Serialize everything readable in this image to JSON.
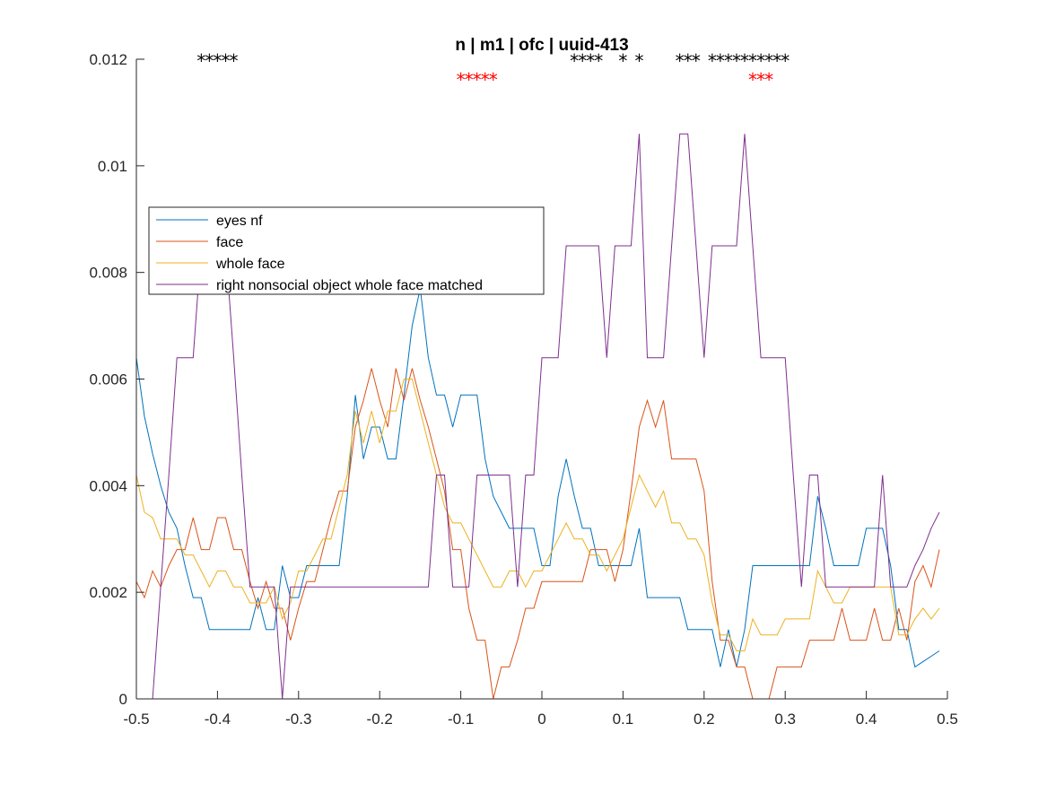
{
  "chart_data": {
    "type": "line",
    "title": "n | m1 | ofc | uuid-413",
    "xlabel": "",
    "ylabel": "",
    "xlim": [
      -0.5,
      0.5
    ],
    "ylim": [
      0,
      0.012
    ],
    "xticks": [
      -0.5,
      -0.4,
      -0.3,
      -0.2,
      -0.1,
      0,
      0.1,
      0.2,
      0.3,
      0.4,
      0.5
    ],
    "xtick_labels": [
      "-0.5",
      "-0.4",
      "-0.3",
      "-0.2",
      "-0.1",
      "0",
      "0.1",
      "0.2",
      "0.3",
      "0.4",
      "0.5"
    ],
    "yticks": [
      0,
      0.002,
      0.004,
      0.006,
      0.008,
      0.01,
      0.012
    ],
    "ytick_labels": [
      "0",
      "0.002",
      "0.004",
      "0.006",
      "0.008",
      "0.01",
      "0.012"
    ],
    "grid": false,
    "legend_position": "upper-left",
    "x": [
      -0.5,
      -0.49,
      -0.48,
      -0.47,
      -0.46,
      -0.45,
      -0.44,
      -0.43,
      -0.42,
      -0.41,
      -0.4,
      -0.39,
      -0.38,
      -0.37,
      -0.36,
      -0.35,
      -0.34,
      -0.33,
      -0.32,
      -0.31,
      -0.3,
      -0.29,
      -0.28,
      -0.27,
      -0.26,
      -0.25,
      -0.24,
      -0.23,
      -0.22,
      -0.21,
      -0.2,
      -0.19,
      -0.18,
      -0.17,
      -0.16,
      -0.15,
      -0.14,
      -0.13,
      -0.12,
      -0.11,
      -0.1,
      -0.09,
      -0.08,
      -0.07,
      -0.06,
      -0.05,
      -0.04,
      -0.03,
      -0.02,
      -0.01,
      0,
      0.01,
      0.02,
      0.03,
      0.04,
      0.05,
      0.06,
      0.07,
      0.08,
      0.09,
      0.1,
      0.11,
      0.12,
      0.13,
      0.14,
      0.15,
      0.16,
      0.17,
      0.18,
      0.19,
      0.2,
      0.21,
      0.22,
      0.23,
      0.24,
      0.25,
      0.26,
      0.27,
      0.28,
      0.29,
      0.3,
      0.31,
      0.32,
      0.33,
      0.34,
      0.35,
      0.36,
      0.37,
      0.38,
      0.39,
      0.4,
      0.41,
      0.42,
      0.43,
      0.44,
      0.45,
      0.46,
      0.47,
      0.48,
      0.49
    ],
    "series": [
      {
        "name": "eyes nf",
        "color": "#0072BD",
        "values": [
          0.0064,
          0.0053,
          0.0046,
          0.004,
          0.0035,
          0.0032,
          0.0025,
          0.0019,
          0.0019,
          0.0013,
          0.0013,
          0.0013,
          0.0013,
          0.0013,
          0.0013,
          0.0019,
          0.0013,
          0.0013,
          0.0025,
          0.0019,
          0.0019,
          0.0025,
          0.0025,
          0.0025,
          0.0025,
          0.0025,
          0.0038,
          0.0057,
          0.0045,
          0.0051,
          0.0051,
          0.0045,
          0.0045,
          0.0057,
          0.007,
          0.0077,
          0.0064,
          0.0057,
          0.0057,
          0.0051,
          0.0057,
          0.0057,
          0.0057,
          0.0045,
          0.0038,
          0.0035,
          0.0032,
          0.0032,
          0.0032,
          0.0032,
          0.0025,
          0.0025,
          0.0038,
          0.0045,
          0.0038,
          0.0032,
          0.0032,
          0.0025,
          0.0025,
          0.0025,
          0.0025,
          0.0025,
          0.0032,
          0.0019,
          0.0019,
          0.0019,
          0.0019,
          0.0019,
          0.0013,
          0.0013,
          0.0013,
          0.0013,
          0.0006,
          0.0013,
          0.0006,
          0.0013,
          0.0025,
          0.0025,
          0.0025,
          0.0025,
          0.0025,
          0.0025,
          0.0025,
          0.0025,
          0.0038,
          0.0032,
          0.0025,
          0.0025,
          0.0025,
          0.0025,
          0.0032,
          0.0032,
          0.0032,
          0.0025,
          0.0013,
          0.0013,
          0.0006,
          0.0007,
          0.0008,
          0.0009
        ]
      },
      {
        "name": "face",
        "color": "#D95319",
        "values": [
          0.0022,
          0.0019,
          0.0024,
          0.0021,
          0.0025,
          0.0028,
          0.0028,
          0.0034,
          0.0028,
          0.0028,
          0.0034,
          0.0034,
          0.0028,
          0.0028,
          0.0022,
          0.0017,
          0.0022,
          0.0017,
          0.0017,
          0.0011,
          0.0017,
          0.0022,
          0.0022,
          0.0028,
          0.0034,
          0.0039,
          0.0039,
          0.0051,
          0.0056,
          0.0062,
          0.0056,
          0.0051,
          0.0062,
          0.0056,
          0.0062,
          0.0056,
          0.0051,
          0.0045,
          0.0039,
          0.0028,
          0.0028,
          0.0017,
          0.0011,
          0.0011,
          0.0,
          0.0006,
          0.0006,
          0.0011,
          0.0017,
          0.0017,
          0.0022,
          0.0022,
          0.0022,
          0.0022,
          0.0022,
          0.0022,
          0.0028,
          0.0028,
          0.0028,
          0.0022,
          0.0028,
          0.0039,
          0.0051,
          0.0056,
          0.0051,
          0.0056,
          0.0045,
          0.0045,
          0.0045,
          0.0045,
          0.0039,
          0.0022,
          0.0011,
          0.0011,
          0.0006,
          0.0006,
          0.0,
          0.0,
          0.0,
          0.0006,
          0.0006,
          0.0006,
          0.0006,
          0.0011,
          0.0011,
          0.0011,
          0.0011,
          0.0017,
          0.0011,
          0.0011,
          0.0011,
          0.0017,
          0.0011,
          0.0011,
          0.0017,
          0.0011,
          0.0022,
          0.0025,
          0.0021,
          0.0028
        ]
      },
      {
        "name": "whole face",
        "color": "#EDB120",
        "values": [
          0.0042,
          0.0035,
          0.0034,
          0.003,
          0.003,
          0.003,
          0.0027,
          0.0027,
          0.0024,
          0.0021,
          0.0024,
          0.0024,
          0.0021,
          0.0021,
          0.0018,
          0.0018,
          0.0018,
          0.0021,
          0.0015,
          0.0018,
          0.0024,
          0.0024,
          0.0027,
          0.003,
          0.003,
          0.0036,
          0.0042,
          0.0054,
          0.0048,
          0.0054,
          0.0048,
          0.0054,
          0.0054,
          0.006,
          0.006,
          0.0054,
          0.0048,
          0.0042,
          0.0036,
          0.0033,
          0.0033,
          0.003,
          0.0027,
          0.0024,
          0.0021,
          0.0021,
          0.0024,
          0.0024,
          0.0021,
          0.0024,
          0.0024,
          0.0027,
          0.003,
          0.0033,
          0.003,
          0.003,
          0.0027,
          0.0027,
          0.0024,
          0.0027,
          0.003,
          0.0036,
          0.0042,
          0.0039,
          0.0036,
          0.0039,
          0.0033,
          0.0033,
          0.003,
          0.003,
          0.0027,
          0.0018,
          0.0012,
          0.0012,
          0.0009,
          0.0009,
          0.0015,
          0.0012,
          0.0012,
          0.0012,
          0.0015,
          0.0015,
          0.0015,
          0.0015,
          0.0024,
          0.0021,
          0.0018,
          0.0018,
          0.0021,
          0.0021,
          0.0021,
          0.0021,
          0.0021,
          0.0021,
          0.0012,
          0.0012,
          0.0015,
          0.0017,
          0.0015,
          0.0017
        ]
      },
      {
        "name": "right nonsocial object whole face matched",
        "color": "#7E2F8E",
        "values": [
          0.0,
          0.0,
          0.0,
          0.0021,
          0.0042,
          0.0064,
          0.0064,
          0.0064,
          0.0085,
          0.0085,
          0.0085,
          0.0085,
          0.0064,
          0.0042,
          0.0021,
          0.0021,
          0.0021,
          0.0021,
          0.0,
          0.0021,
          0.0021,
          0.0021,
          0.0021,
          0.0021,
          0.0021,
          0.0021,
          0.0021,
          0.0021,
          0.0021,
          0.0021,
          0.0021,
          0.0021,
          0.0021,
          0.0021,
          0.0021,
          0.0021,
          0.0021,
          0.0042,
          0.0042,
          0.0021,
          0.0021,
          0.0021,
          0.0042,
          0.0042,
          0.0042,
          0.0042,
          0.0042,
          0.0021,
          0.0042,
          0.0042,
          0.0064,
          0.0064,
          0.0064,
          0.0085,
          0.0085,
          0.0085,
          0.0085,
          0.0085,
          0.0064,
          0.0085,
          0.0085,
          0.0085,
          0.0106,
          0.0064,
          0.0064,
          0.0064,
          0.0085,
          0.0106,
          0.0106,
          0.0085,
          0.0064,
          0.0085,
          0.0085,
          0.0085,
          0.0085,
          0.0106,
          0.0085,
          0.0064,
          0.0064,
          0.0064,
          0.0064,
          0.0042,
          0.0021,
          0.0042,
          0.0042,
          0.0021,
          0.0021,
          0.0021,
          0.0021,
          0.0021,
          0.0021,
          0.0021,
          0.0042,
          0.0021,
          0.0021,
          0.0021,
          0.0025,
          0.0028,
          0.0032,
          0.0035
        ]
      }
    ],
    "significance_markers": [
      {
        "color": "#000000",
        "y": 0.012,
        "x": [
          -0.42,
          -0.41,
          -0.4,
          -0.39,
          -0.38,
          0.04,
          0.05,
          0.06,
          0.07,
          0.1,
          0.12,
          0.17,
          0.18,
          0.19,
          0.21,
          0.22,
          0.23,
          0.24,
          0.25,
          0.26,
          0.27,
          0.28,
          0.29,
          0.3
        ]
      },
      {
        "color": "#FF0000",
        "y": 0.01165,
        "x": [
          -0.1,
          -0.09,
          -0.08,
          -0.07,
          -0.06,
          0.26,
          0.27,
          0.28
        ]
      }
    ]
  }
}
